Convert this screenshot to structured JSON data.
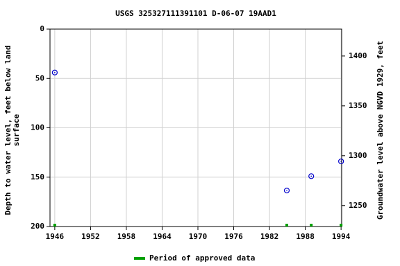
{
  "chart_data": {
    "type": "scatter",
    "title": "USGS 325327111391101 D-06-07 19AAD1",
    "ylabel": [
      "Depth to water level, feet below land",
      "surface"
    ],
    "y2label": "Groundwater level above NGVD 1929, feet",
    "x": [
      1946.0,
      1984.9,
      1989.0,
      1994.0
    ],
    "values": [
      44,
      163.5,
      149,
      134
    ],
    "color": "#0000cc",
    "xlim": [
      1945.2,
      1994.1
    ],
    "xticks": [
      1946,
      1952,
      1958,
      1964,
      1970,
      1976,
      1982,
      1988,
      1994
    ],
    "ylim": [
      0,
      200
    ],
    "yticks": [
      0,
      50,
      100,
      150,
      200
    ],
    "y_reversed": true,
    "y2lim": [
      1229,
      1427
    ],
    "y2ticks": [
      1250,
      1300,
      1350,
      1400
    ],
    "grid": true,
    "approved_periods": {
      "name": "Period of approved data",
      "color": "#00a000",
      "x": [
        1946.0,
        1984.9,
        1989.0,
        1994.0
      ]
    }
  }
}
